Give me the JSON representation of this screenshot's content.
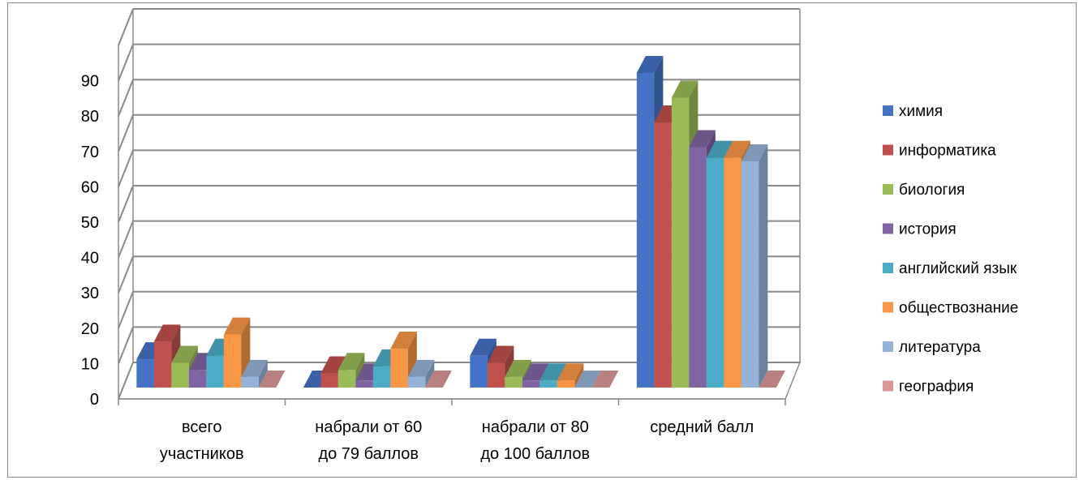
{
  "chart_data": {
    "type": "bar",
    "categories": [
      [
        "всего",
        "участников"
      ],
      [
        "набрали от 60",
        "до 79 баллов"
      ],
      [
        "набрали от 80",
        "до 100 баллов"
      ],
      [
        "средний балл"
      ]
    ],
    "series": [
      {
        "name": "химия",
        "color": "#4472C4",
        "values": [
          8,
          0,
          9,
          89
        ]
      },
      {
        "name": "информатика",
        "color": "#C0504D",
        "values": [
          13,
          4,
          7,
          75
        ]
      },
      {
        "name": "биология",
        "color": "#9BBB59",
        "values": [
          7,
          5,
          3,
          82
        ]
      },
      {
        "name": "история",
        "color": "#8064A2",
        "values": [
          5,
          2,
          2,
          68
        ]
      },
      {
        "name": "английский язык",
        "color": "#4BACC6",
        "values": [
          9,
          6,
          2,
          65
        ]
      },
      {
        "name": "обществознание",
        "color": "#F79646",
        "values": [
          15,
          11,
          2,
          65
        ]
      },
      {
        "name": "литература",
        "color": "#95B3D7",
        "values": [
          3,
          3,
          0,
          64
        ]
      },
      {
        "name": "география",
        "color": "#D99694",
        "values": [
          0,
          0,
          0,
          0
        ]
      }
    ],
    "ylim": [
      0,
      90
    ],
    "yticks": [
      0,
      10,
      20,
      30,
      40,
      50,
      60,
      70,
      80,
      90
    ],
    "grid": true,
    "legend_position": "right",
    "title": "",
    "xlabel": "",
    "ylabel": ""
  }
}
